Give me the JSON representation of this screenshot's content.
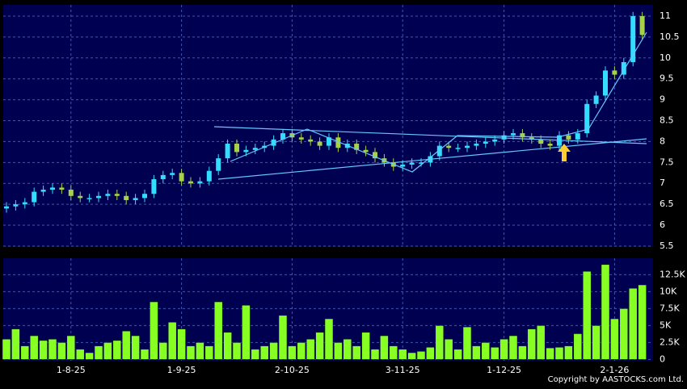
{
  "chart_data": {
    "type": "candlestick",
    "categories": [
      null,
      null,
      null,
      null,
      null,
      null,
      null,
      "1-8-25",
      null,
      null,
      null,
      null,
      null,
      null,
      null,
      null,
      null,
      null,
      null,
      "1-9-25",
      null,
      null,
      null,
      null,
      null,
      null,
      null,
      null,
      null,
      null,
      null,
      "2-10-25",
      null,
      null,
      null,
      null,
      null,
      null,
      null,
      null,
      null,
      null,
      null,
      "3-11-25",
      null,
      null,
      null,
      null,
      null,
      null,
      null,
      null,
      null,
      null,
      "1-12-25",
      null,
      null,
      null,
      null,
      null,
      null,
      null,
      null,
      null,
      null,
      null,
      "2-1-26",
      null,
      null,
      null
    ],
    "open": [
      6.4,
      6.45,
      6.5,
      6.55,
      6.8,
      6.85,
      6.9,
      6.85,
      6.7,
      6.65,
      6.65,
      6.7,
      6.75,
      6.7,
      6.6,
      6.65,
      6.75,
      7.1,
      7.2,
      7.25,
      7.05,
      7.0,
      7.05,
      7.3,
      7.6,
      7.95,
      7.75,
      7.8,
      7.85,
      7.9,
      8.05,
      8.2,
      8.1,
      8.05,
      8.0,
      7.9,
      8.1,
      7.85,
      7.95,
      7.8,
      7.75,
      7.6,
      7.5,
      7.4,
      7.45,
      7.5,
      7.5,
      7.65,
      7.9,
      7.85,
      7.85,
      7.9,
      7.95,
      8.0,
      8.05,
      8.15,
      8.2,
      8.1,
      8.05,
      7.95,
      7.9,
      8.15,
      8.05,
      8.2,
      8.9,
      9.1,
      9.7,
      9.6,
      9.9,
      11.0
    ],
    "high": [
      6.55,
      6.6,
      6.65,
      6.9,
      6.95,
      7.0,
      7.0,
      6.95,
      6.8,
      6.75,
      6.8,
      6.85,
      6.85,
      6.8,
      6.75,
      6.85,
      7.2,
      7.3,
      7.35,
      7.35,
      7.15,
      7.15,
      7.4,
      7.7,
      8.05,
      8.05,
      7.9,
      7.95,
      8.0,
      8.15,
      8.3,
      8.3,
      8.2,
      8.15,
      8.1,
      8.2,
      8.2,
      8.05,
      8.05,
      7.9,
      7.85,
      7.7,
      7.6,
      7.55,
      7.6,
      7.6,
      7.75,
      8.0,
      8.0,
      7.95,
      8.0,
      8.05,
      8.1,
      8.15,
      8.25,
      8.3,
      8.3,
      8.2,
      8.15,
      8.05,
      8.25,
      8.25,
      8.3,
      9.0,
      9.2,
      9.8,
      9.8,
      10.0,
      11.1,
      11.1
    ],
    "low": [
      6.3,
      6.35,
      6.4,
      6.45,
      6.7,
      6.75,
      6.75,
      6.6,
      6.55,
      6.55,
      6.55,
      6.6,
      6.6,
      6.5,
      6.5,
      6.55,
      6.65,
      7.0,
      7.1,
      6.95,
      6.9,
      6.9,
      6.95,
      7.2,
      7.5,
      7.65,
      7.65,
      7.7,
      7.75,
      7.8,
      7.95,
      8.0,
      7.95,
      7.9,
      7.8,
      7.8,
      7.75,
      7.75,
      7.7,
      7.65,
      7.5,
      7.4,
      7.3,
      7.3,
      7.35,
      7.4,
      7.4,
      7.55,
      7.75,
      7.75,
      7.75,
      7.8,
      7.85,
      7.9,
      7.95,
      8.05,
      8.0,
      7.95,
      7.85,
      7.8,
      7.8,
      7.95,
      7.95,
      8.1,
      8.8,
      9.0,
      9.5,
      9.5,
      9.8,
      10.45
    ],
    "close": [
      6.45,
      6.5,
      6.55,
      6.8,
      6.85,
      6.9,
      6.85,
      6.7,
      6.65,
      6.65,
      6.7,
      6.75,
      6.7,
      6.6,
      6.65,
      6.75,
      7.1,
      7.2,
      7.25,
      7.05,
      7.0,
      7.05,
      7.3,
      7.6,
      7.95,
      7.75,
      7.8,
      7.85,
      7.9,
      8.05,
      8.2,
      8.1,
      8.05,
      8.0,
      7.9,
      8.1,
      7.85,
      7.95,
      7.8,
      7.75,
      7.6,
      7.5,
      7.4,
      7.45,
      7.5,
      7.5,
      7.65,
      7.9,
      7.85,
      7.85,
      7.9,
      7.95,
      8.0,
      8.05,
      8.15,
      8.2,
      8.1,
      8.05,
      7.95,
      7.9,
      8.15,
      8.05,
      8.2,
      8.9,
      9.1,
      9.7,
      9.6,
      9.9,
      11.0,
      10.55
    ],
    "up_color": "#33ddff",
    "down_color": "#a6d14a",
    "ylim": [
      5.48,
      11.27
    ],
    "yticks": [
      5.5,
      6,
      6.5,
      7,
      7.5,
      8,
      8.5,
      9,
      9.5,
      10,
      10.5,
      11
    ],
    "grid": true,
    "volume": {
      "type": "bar",
      "color": "#88ff22",
      "values": [
        3000,
        4500,
        2000,
        3500,
        2800,
        3000,
        2500,
        3500,
        1500,
        1000,
        2000,
        2500,
        2800,
        4200,
        3500,
        1500,
        8500,
        2500,
        5500,
        4500,
        2000,
        2500,
        2000,
        8500,
        4000,
        2500,
        8000,
        1500,
        2000,
        2500,
        6500,
        2000,
        2500,
        3000,
        4000,
        6000,
        2500,
        3000,
        2000,
        4000,
        1500,
        3500,
        2000,
        1500,
        1000,
        1200,
        1800,
        5000,
        3000,
        1500,
        4800,
        2000,
        2500,
        1800,
        3000,
        3500,
        2000,
        4500,
        5000,
        1700,
        1800,
        2000,
        3800,
        13000,
        5000,
        14000,
        6000,
        7500,
        10500,
        11000
      ],
      "ylim": [
        -190,
        14930
      ],
      "yticks": [
        0,
        {
          "value": 2500,
          "label": "2.5K"
        },
        {
          "value": 5000,
          "label": "5K"
        },
        {
          "value": 7500,
          "label": "7.5K"
        },
        {
          "value": 10000,
          "label": "10K"
        },
        {
          "value": 12500,
          "label": "12.5K"
        }
      ]
    }
  },
  "footer": {
    "copyright": "Copyright by AASTOCKS.com Ltd."
  }
}
